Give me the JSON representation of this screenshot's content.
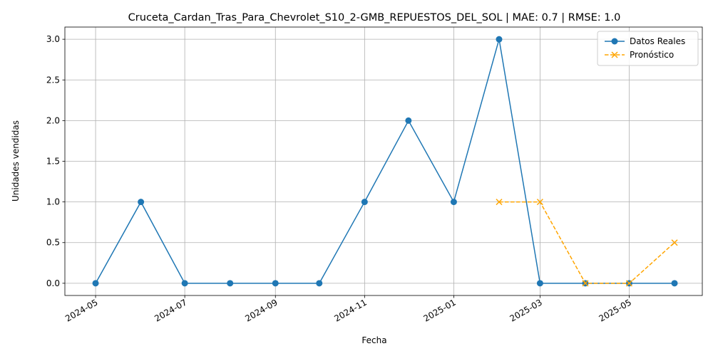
{
  "chart_data": {
    "type": "line",
    "title": "Cruceta_Cardan_Tras_Para_Chevrolet_S10_2-GMB_REPUESTOS_DEL_SOL | MAE: 0.7 | RMSE: 1.0",
    "xlabel": "Fecha",
    "ylabel": "Unidades vendidas",
    "x_ticks": [
      "2024-05",
      "2024-07",
      "2024-09",
      "2024-11",
      "2025-01",
      "2025-03",
      "2025-05"
    ],
    "y_ticks": [
      "0.0",
      "0.5",
      "1.0",
      "1.5",
      "2.0",
      "2.5",
      "3.0"
    ],
    "xlim": [
      "2024-04-10",
      "2025-06-20"
    ],
    "ylim": [
      -0.15,
      3.15
    ],
    "grid": true,
    "legend_position": "top-right",
    "series": [
      {
        "name": "Datos Reales",
        "color": "#1f77b4",
        "marker": "circle",
        "linestyle": "solid",
        "x": [
          "2024-05-01",
          "2024-06-01",
          "2024-07-01",
          "2024-08-01",
          "2024-09-01",
          "2024-10-01",
          "2024-11-01",
          "2024-12-01",
          "2025-01-01",
          "2025-02-01",
          "2025-03-01",
          "2025-04-01",
          "2025-05-01",
          "2025-06-01"
        ],
        "values": [
          0,
          1,
          0,
          0,
          0,
          0,
          1,
          2,
          1,
          3,
          0,
          0,
          0,
          0
        ]
      },
      {
        "name": "Pronóstico",
        "color": "#ffa500",
        "marker": "x",
        "linestyle": "dashed",
        "x": [
          "2025-02-01",
          "2025-03-01",
          "2025-04-01",
          "2025-05-01",
          "2025-06-01"
        ],
        "values": [
          1,
          1,
          0,
          0,
          0.5
        ]
      }
    ]
  }
}
